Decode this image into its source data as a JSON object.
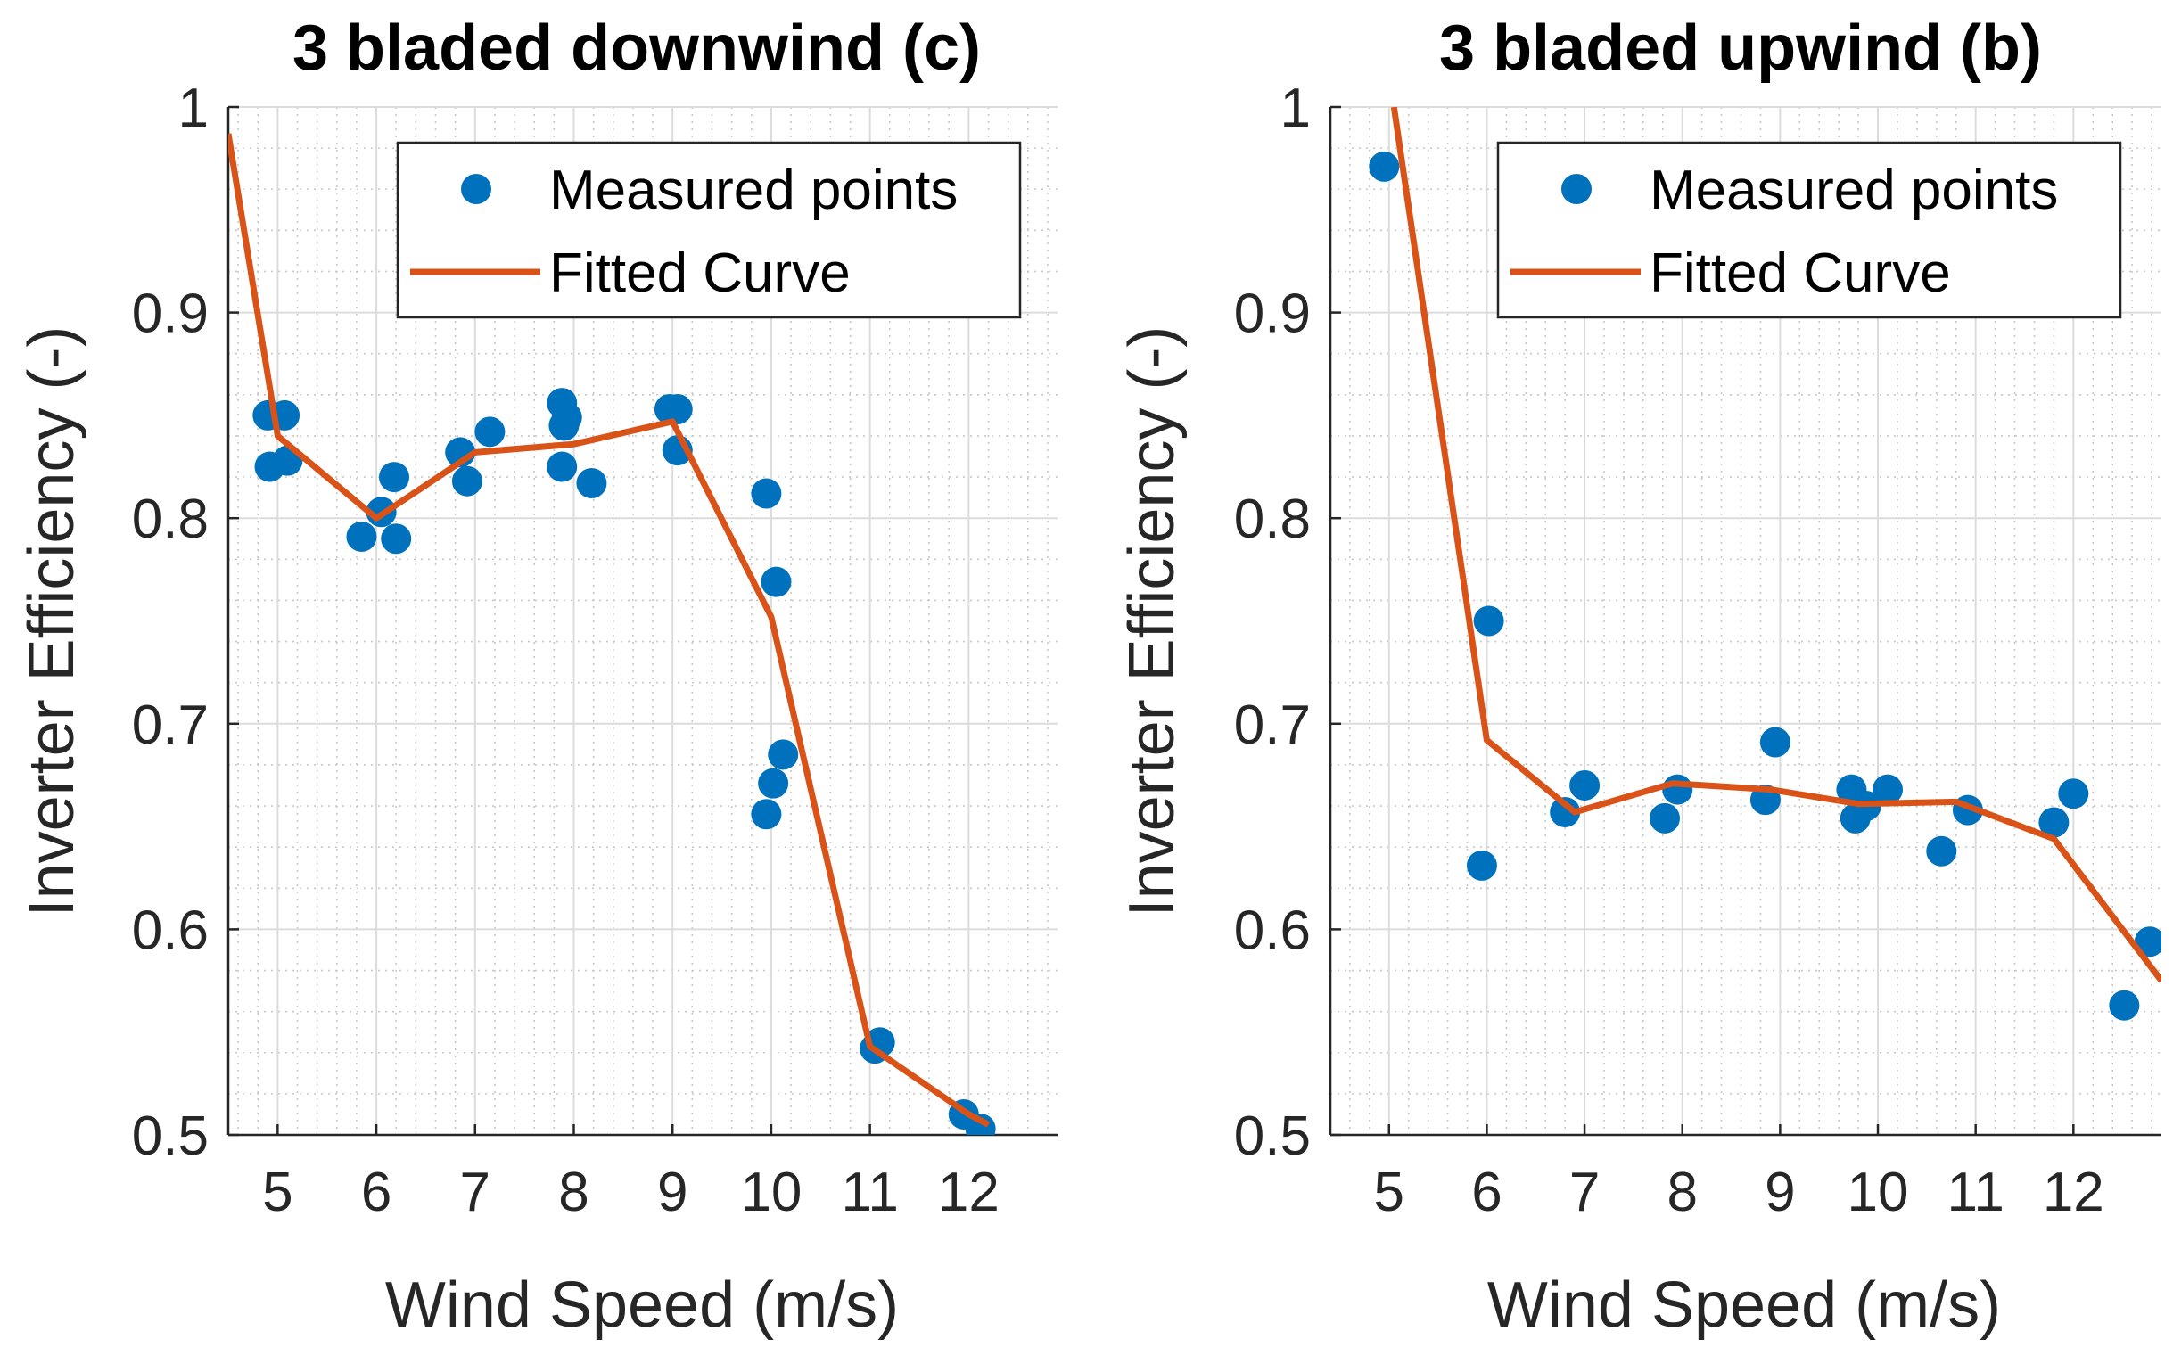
{
  "chart_data": [
    {
      "type": "scatter",
      "title": "3 bladed downwind (c)",
      "xlabel": "Wind Speed (m/s)",
      "ylabel": "Inverter Efficiency (-)",
      "xlim": [
        4.5,
        12.9
      ],
      "ylim": [
        0.5,
        1.0
      ],
      "xticks": [
        5,
        6,
        7,
        8,
        9,
        10,
        11,
        12
      ],
      "yticks": [
        0.5,
        0.6,
        0.7,
        0.8,
        0.9,
        1.0
      ],
      "xtick_labels": [
        "5",
        "6",
        "7",
        "8",
        "9",
        "10",
        "11",
        "12"
      ],
      "ytick_labels": [
        "0.5",
        "0.6",
        "0.7",
        "0.8",
        "0.9",
        "1"
      ],
      "grid": true,
      "minor_grid": true,
      "legend": {
        "position": "top-right",
        "entries": [
          "Measured points",
          "Fitted Curve"
        ]
      },
      "series": [
        {
          "name": "Measured points",
          "kind": "scatter",
          "color": "#0072BD",
          "x": [
            4.9,
            5.07,
            4.92,
            5.1,
            5.85,
            6.05,
            6.2,
            6.18,
            6.85,
            6.92,
            7.15,
            7.88,
            7.9,
            7.93,
            7.88,
            8.18,
            8.97,
            9.05,
            9.05,
            9.95,
            10.05,
            9.95,
            10.02,
            10.12,
            11.05,
            11.1,
            11.95,
            12.12
          ],
          "y": [
            0.85,
            0.85,
            0.825,
            0.828,
            0.791,
            0.803,
            0.79,
            0.82,
            0.832,
            0.818,
            0.842,
            0.856,
            0.845,
            0.849,
            0.825,
            0.817,
            0.853,
            0.853,
            0.833,
            0.812,
            0.769,
            0.656,
            0.671,
            0.685,
            0.542,
            0.545,
            0.51,
            0.503
          ]
        },
        {
          "name": "Fitted Curve",
          "kind": "line",
          "color": "#D95319",
          "x": [
            4.5,
            5.0,
            6.0,
            7.0,
            8.0,
            9.0,
            10.0,
            11.0,
            12.0,
            12.2
          ],
          "y": [
            0.987,
            0.84,
            0.8,
            0.832,
            0.836,
            0.847,
            0.752,
            0.543,
            0.51,
            0.505
          ]
        }
      ]
    },
    {
      "type": "scatter",
      "title": "3 bladed upwind (b)",
      "xlabel": "Wind Speed (m/s)",
      "ylabel": "Inverter Efficiency (-)",
      "xlim": [
        4.4,
        12.9
      ],
      "ylim": [
        0.5,
        1.0
      ],
      "xticks": [
        5,
        6,
        7,
        8,
        9,
        10,
        11,
        12
      ],
      "yticks": [
        0.5,
        0.6,
        0.7,
        0.8,
        0.9,
        1.0
      ],
      "xtick_labels": [
        "5",
        "6",
        "7",
        "8",
        "9",
        "10",
        "11",
        "12"
      ],
      "ytick_labels": [
        "0.5",
        "0.6",
        "0.7",
        "0.8",
        "0.9",
        "1"
      ],
      "grid": true,
      "minor_grid": true,
      "legend": {
        "position": "top-right",
        "entries": [
          "Measured points",
          "Fitted Curve"
        ]
      },
      "series": [
        {
          "name": "Measured points",
          "kind": "scatter",
          "color": "#0072BD",
          "x": [
            4.95,
            5.95,
            6.02,
            6.8,
            7.0,
            7.82,
            7.95,
            8.85,
            8.95,
            9.73,
            9.77,
            9.88,
            10.1,
            10.65,
            10.92,
            11.8,
            12.0,
            12.52,
            12.78
          ],
          "y": [
            0.971,
            0.631,
            0.75,
            0.657,
            0.67,
            0.654,
            0.668,
            0.663,
            0.691,
            0.668,
            0.654,
            0.66,
            0.668,
            0.638,
            0.658,
            0.652,
            0.666,
            0.563,
            0.594
          ]
        },
        {
          "name": "Fitted Curve",
          "kind": "line",
          "color": "#D95319",
          "x": [
            5.05,
            6.0,
            6.9,
            7.9,
            8.9,
            9.8,
            10.8,
            11.8,
            12.9
          ],
          "y": [
            1.0,
            0.692,
            0.657,
            0.671,
            0.668,
            0.661,
            0.662,
            0.644,
            0.575
          ]
        }
      ]
    }
  ]
}
